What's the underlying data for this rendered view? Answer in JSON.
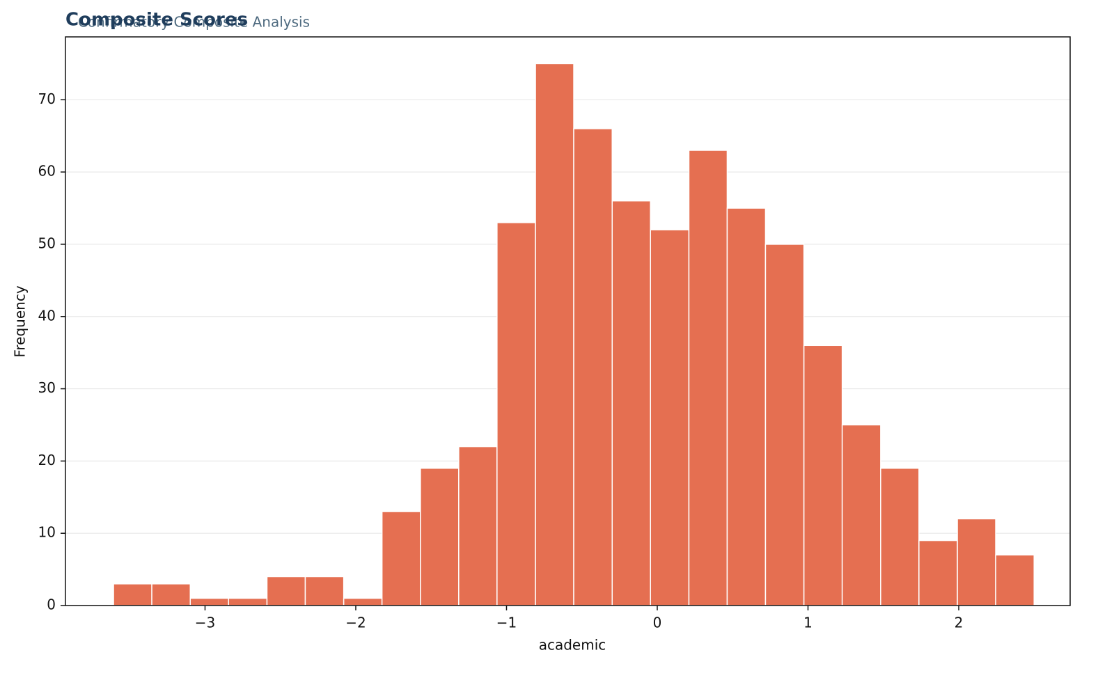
{
  "chart_data": {
    "type": "histogram",
    "title": "Composite Scores",
    "subtitle": "Confirmatory Composite Analysis",
    "x_label": "academic",
    "y_label": "Frequency",
    "bins": [
      -3.607,
      -3.353,
      -3.098,
      -2.844,
      -2.589,
      -2.335,
      -2.08,
      -1.826,
      -1.571,
      -1.317,
      -1.063,
      -0.808,
      -0.554,
      -0.299,
      -0.045,
      0.21,
      0.464,
      0.718,
      0.973,
      1.227,
      1.482,
      1.736,
      1.991,
      2.245,
      2.5
    ],
    "values": [
      3,
      3,
      1,
      1,
      4,
      4,
      1,
      13,
      19,
      22,
      53,
      75,
      66,
      56,
      52,
      63,
      55,
      50,
      36,
      25,
      19,
      9,
      12,
      7
    ],
    "color": "#e56f51",
    "xlim": [
      -3.926,
      2.739
    ],
    "xticks": [
      {
        "value": -3,
        "label": "−3"
      },
      {
        "value": -2,
        "label": "−2"
      },
      {
        "value": -1,
        "label": "−1"
      },
      0,
      1,
      2
    ],
    "ylim": [
      0,
      78.7
    ],
    "yticks": [
      0,
      10,
      20,
      30,
      40,
      50,
      60,
      70
    ],
    "grid": "y"
  }
}
